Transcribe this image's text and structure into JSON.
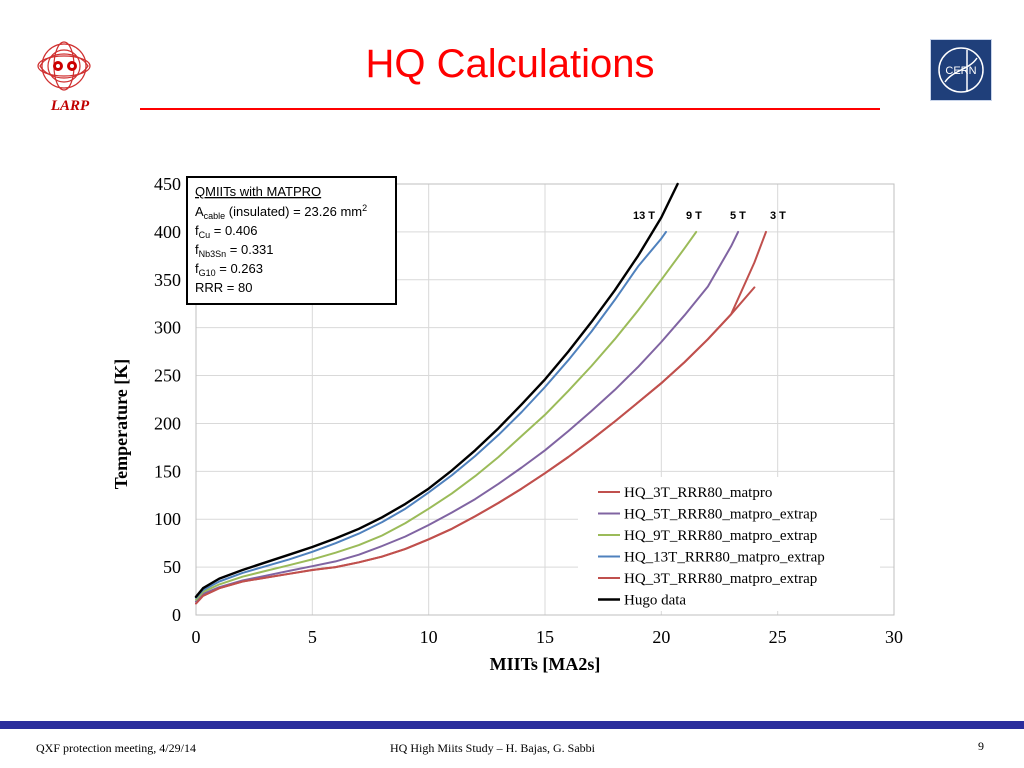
{
  "slide": {
    "title": "HQ Calculations",
    "footer_left": "QXF protection meeting, 4/29/14",
    "footer_center": "HQ High Miits Study – H. Bajas, G. Sabbi",
    "page_number": "9"
  },
  "logos": {
    "larp_text": "LARP",
    "cern_text": "CERN"
  },
  "colors": {
    "title": "#ff0000",
    "footer_bar": "#2a2d9c"
  },
  "chart_data": {
    "type": "line",
    "xlabel": "MIITs [MA2s]",
    "ylabel": "Temperature [K]",
    "xlim": [
      0,
      30
    ],
    "ylim": [
      0,
      450
    ],
    "x_ticks": [
      0,
      5,
      10,
      15,
      20,
      25,
      30
    ],
    "y_ticks": [
      0,
      50,
      100,
      150,
      200,
      250,
      300,
      350,
      400,
      450
    ],
    "grid": true,
    "legend_position": "bottom-right",
    "info_box": {
      "line1": "QMIITs with MATPRO",
      "line2_main": "A",
      "line2_sub": "cable",
      "line2_rest": " (insulated) = 23.26 mm",
      "line2_sup": "2",
      "line3_main": "f",
      "line3_sub": "Cu",
      "line3_rest": " = 0.406",
      "line4_main": "f",
      "line4_sub": "Nb3Sn",
      "line4_rest": " = 0.331",
      "line5_main": "f",
      "line5_sub": "G10",
      "line5_rest": " = 0.263",
      "line6": "RRR = 80"
    },
    "annotations": [
      "13 T",
      "9 T",
      "5 T",
      "3 T"
    ],
    "series": [
      {
        "name": "HQ_3T_RRR80_matpro",
        "color": "#c0504d",
        "x": [
          0,
          0.3,
          1,
          2,
          3,
          4,
          5,
          6,
          7,
          8,
          9,
          10,
          11,
          12,
          13,
          14,
          15,
          16,
          17,
          18,
          19,
          20,
          21,
          22,
          23,
          24
        ],
        "y": [
          12,
          20,
          28,
          35,
          39,
          43,
          47,
          50,
          55,
          61,
          69,
          79,
          90,
          103,
          117,
          132,
          148,
          165,
          183,
          202,
          222,
          242,
          264,
          288,
          314,
          342
        ]
      },
      {
        "name": "HQ_5T_RRR80_matpro_extrap",
        "color": "#8064a2",
        "x": [
          0,
          0.3,
          1,
          2,
          3,
          4,
          5,
          6,
          7,
          8,
          9,
          10,
          11,
          12,
          13,
          14,
          15,
          16,
          17,
          18,
          19,
          20,
          21,
          22,
          23,
          23.3
        ],
        "y": [
          14,
          22,
          29,
          36,
          41,
          46,
          51,
          56,
          63,
          72,
          82,
          94,
          107,
          121,
          137,
          154,
          172,
          192,
          213,
          235,
          259,
          285,
          313,
          343,
          385,
          400
        ]
      },
      {
        "name": "HQ_9T_RRR80_matpro_extrap",
        "color": "#9bbb59",
        "x": [
          0,
          0.3,
          1,
          2,
          3,
          4,
          5,
          6,
          7,
          8,
          9,
          10,
          11,
          12,
          13,
          14,
          15,
          16,
          17,
          18,
          19,
          20,
          21,
          21.5
        ],
        "y": [
          16,
          24,
          32,
          40,
          46,
          52,
          58,
          65,
          73,
          83,
          96,
          111,
          127,
          145,
          165,
          187,
          209,
          234,
          260,
          288,
          318,
          350,
          383,
          400
        ]
      },
      {
        "name": "HQ_13T_RRR80_matpro_extrap",
        "color": "#4f81bd",
        "x": [
          0,
          0.3,
          1,
          2,
          3,
          4,
          5,
          6,
          7,
          8,
          9,
          10,
          11,
          12,
          13,
          14,
          15,
          16,
          17,
          18,
          19,
          20,
          20.2
        ],
        "y": [
          18,
          26,
          35,
          44,
          51,
          58,
          66,
          75,
          85,
          97,
          111,
          128,
          146,
          166,
          188,
          212,
          238,
          266,
          296,
          329,
          364,
          393,
          400
        ]
      },
      {
        "name": "HQ_3T_RRR80_matpro_extrap",
        "color": "#c0504d",
        "x": [
          0,
          0.3,
          1,
          2,
          3,
          4,
          5,
          6,
          7,
          8,
          9,
          10,
          11,
          12,
          13,
          14,
          15,
          16,
          17,
          18,
          19,
          20,
          21,
          22,
          23,
          24,
          24.5
        ],
        "y": [
          12,
          20,
          28,
          35,
          39,
          43,
          47,
          50,
          55,
          61,
          69,
          79,
          90,
          103,
          117,
          132,
          148,
          165,
          183,
          202,
          222,
          242,
          264,
          288,
          314,
          368,
          400
        ]
      },
      {
        "name": "Hugo data",
        "color": "#000000",
        "x": [
          0,
          0.3,
          1,
          2,
          3,
          4,
          5,
          6,
          7,
          8,
          9,
          10,
          11,
          12,
          13,
          14,
          15,
          16,
          17,
          18,
          19,
          20,
          20.7
        ],
        "y": [
          19,
          28,
          38,
          47,
          55,
          63,
          71,
          80,
          90,
          102,
          116,
          132,
          151,
          172,
          195,
          220,
          246,
          275,
          306,
          339,
          375,
          415,
          450
        ]
      }
    ]
  }
}
